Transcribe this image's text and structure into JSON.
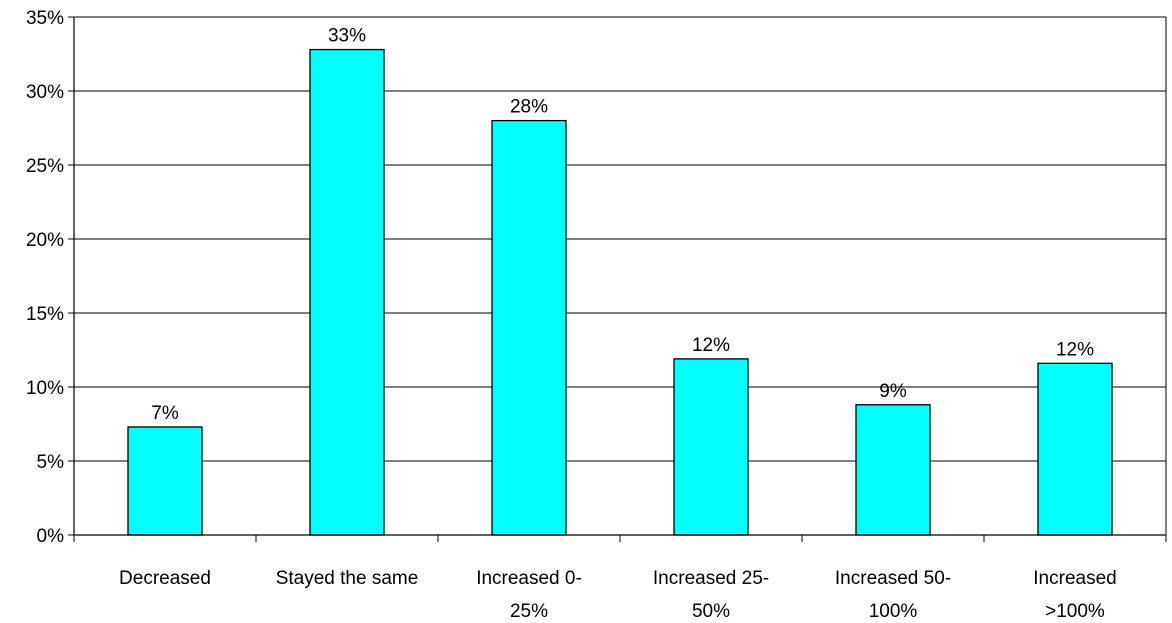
{
  "chart_data": {
    "type": "bar",
    "title": "",
    "xlabel": "",
    "ylabel": "",
    "categories": [
      [
        "Decreased"
      ],
      [
        "Stayed the same"
      ],
      [
        "Increased 0-",
        "25%"
      ],
      [
        "Increased 25-",
        "50%"
      ],
      [
        "Increased 50-",
        "100%"
      ],
      [
        "Increased",
        ">100%"
      ]
    ],
    "values": [
      7.3,
      32.8,
      28.0,
      11.9,
      8.8,
      11.6
    ],
    "data_labels": [
      "7%",
      "33%",
      "28%",
      "12%",
      "9%",
      "12%"
    ],
    "ylim": [
      0,
      35
    ],
    "yticks": [
      0,
      5,
      10,
      15,
      20,
      25,
      30,
      35
    ],
    "ytick_labels": [
      "0%",
      "5%",
      "10%",
      "15%",
      "20%",
      "25%",
      "30%",
      "35%"
    ],
    "grid": true,
    "legend": "none",
    "colors": {
      "bar_fill": "#00FFFF",
      "bar_stroke": "#000000",
      "grid": "#000000"
    }
  }
}
